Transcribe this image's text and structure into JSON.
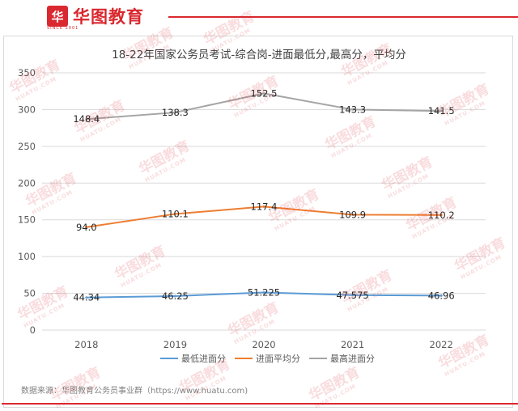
{
  "header": {
    "logo_mark": "华",
    "logo_text": "华图教育",
    "logo_sub": "SINCE 2001"
  },
  "watermark": {
    "text": "华图教育",
    "sub": "HUATU.COM"
  },
  "source_note": "数据来源：华图教育公务员事业群（https://www.huatu.com)",
  "colors": {
    "min": "#5b9bd5",
    "avg": "#ed7d31",
    "max": "#a5a5a5",
    "brand": "#d9282f",
    "grid": "#d9d9d9"
  },
  "chart_data": {
    "type": "line",
    "title": "18-22年国家公务员考试-综合岗-进面最低分,最高分，平均分",
    "categories": [
      "2018",
      "2019",
      "2020",
      "2021",
      "2022"
    ],
    "ylim": [
      0,
      350
    ],
    "yticks": [
      "0",
      "50",
      "100",
      "150",
      "200",
      "250",
      "300",
      "350"
    ],
    "grid": true,
    "legend_position": "bottom",
    "series": [
      {
        "name": "最低进面分",
        "values": [
          44.34,
          46.25,
          51.225,
          47.575,
          46.96
        ],
        "labels": [
          "44.34",
          "46.25",
          "51.225",
          "47.575",
          "46.96"
        ],
        "color": "#5b9bd5"
      },
      {
        "name": "进面平均分",
        "values": [
          140,
          158,
          168,
          157,
          156.5
        ],
        "labels": [
          "94.0",
          "110.1",
          "117.4",
          "109.9",
          "110.2"
        ],
        "color": "#ed7d31"
      },
      {
        "name": "最高进面分",
        "values": [
          287,
          296,
          322,
          300,
          298
        ],
        "labels": [
          "148.4",
          "138.3",
          "152.5",
          "143.3",
          "141.5"
        ],
        "color": "#a5a5a5"
      }
    ]
  }
}
